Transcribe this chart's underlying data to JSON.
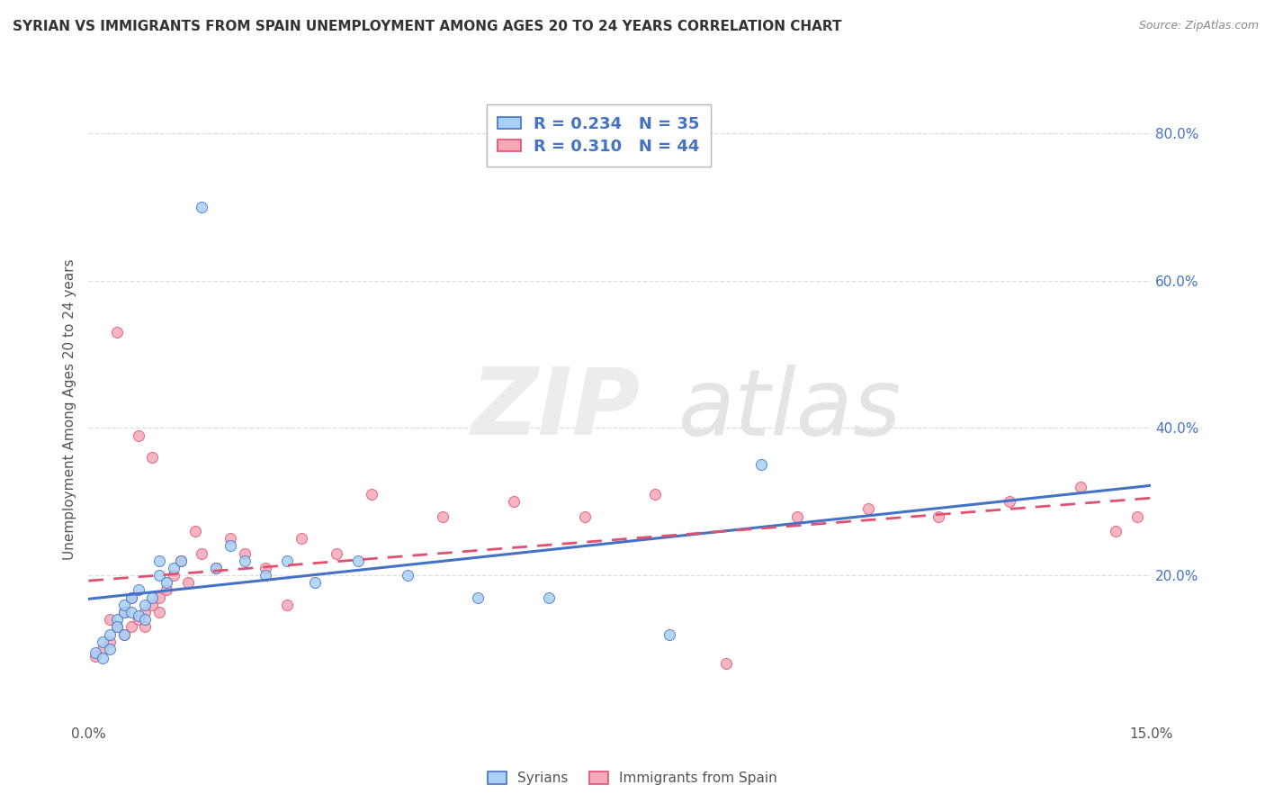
{
  "title": "SYRIAN VS IMMIGRANTS FROM SPAIN UNEMPLOYMENT AMONG AGES 20 TO 24 YEARS CORRELATION CHART",
  "source": "Source: ZipAtlas.com",
  "ylabel": "Unemployment Among Ages 20 to 24 years",
  "label_syrians": "Syrians",
  "label_spain": "Immigrants from Spain",
  "xlim": [
    0.0,
    0.15
  ],
  "ylim": [
    0.0,
    0.85
  ],
  "yticks": [
    0.0,
    0.2,
    0.4,
    0.6,
    0.8
  ],
  "ytick_labels_right": [
    "",
    "20.0%",
    "40.0%",
    "60.0%",
    "80.0%"
  ],
  "xtick_labels": [
    "0.0%",
    "15.0%"
  ],
  "r_syrian": 0.234,
  "n_syrian": 35,
  "r_spain": 0.31,
  "n_spain": 44,
  "color_syrian_fill": "#a8d0f5",
  "color_syrian_edge": "#4472c4",
  "color_spain_fill": "#f5a8b8",
  "color_spain_edge": "#e05070",
  "color_reg_syrian": "#4472c4",
  "color_reg_spain": "#e05070",
  "legend_text_color": "#4472c4",
  "grid_color": "#dddddd",
  "title_color": "#333333",
  "source_color": "#888888",
  "tick_color": "#555555",
  "background": "#ffffff",
  "syrian_x": [
    0.001,
    0.002,
    0.002,
    0.003,
    0.003,
    0.004,
    0.004,
    0.005,
    0.005,
    0.005,
    0.006,
    0.006,
    0.007,
    0.007,
    0.008,
    0.008,
    0.009,
    0.01,
    0.01,
    0.011,
    0.012,
    0.013,
    0.016,
    0.018,
    0.02,
    0.022,
    0.025,
    0.028,
    0.032,
    0.038,
    0.045,
    0.055,
    0.065,
    0.082,
    0.095
  ],
  "syrian_y": [
    0.095,
    0.088,
    0.11,
    0.12,
    0.1,
    0.14,
    0.13,
    0.15,
    0.12,
    0.16,
    0.15,
    0.17,
    0.145,
    0.18,
    0.16,
    0.14,
    0.17,
    0.2,
    0.22,
    0.19,
    0.21,
    0.22,
    0.7,
    0.21,
    0.24,
    0.22,
    0.2,
    0.22,
    0.19,
    0.22,
    0.2,
    0.17,
    0.17,
    0.12,
    0.35
  ],
  "spain_x": [
    0.001,
    0.002,
    0.003,
    0.003,
    0.004,
    0.004,
    0.005,
    0.005,
    0.006,
    0.006,
    0.007,
    0.007,
    0.008,
    0.008,
    0.009,
    0.009,
    0.01,
    0.01,
    0.011,
    0.012,
    0.013,
    0.014,
    0.015,
    0.016,
    0.018,
    0.02,
    0.022,
    0.025,
    0.028,
    0.03,
    0.035,
    0.04,
    0.05,
    0.06,
    0.07,
    0.08,
    0.09,
    0.1,
    0.11,
    0.12,
    0.13,
    0.14,
    0.145,
    0.148
  ],
  "spain_y": [
    0.09,
    0.1,
    0.11,
    0.14,
    0.13,
    0.53,
    0.12,
    0.15,
    0.13,
    0.17,
    0.14,
    0.39,
    0.15,
    0.13,
    0.16,
    0.36,
    0.15,
    0.17,
    0.18,
    0.2,
    0.22,
    0.19,
    0.26,
    0.23,
    0.21,
    0.25,
    0.23,
    0.21,
    0.16,
    0.25,
    0.23,
    0.31,
    0.28,
    0.3,
    0.28,
    0.31,
    0.08,
    0.28,
    0.29,
    0.28,
    0.3,
    0.32,
    0.26,
    0.28
  ]
}
